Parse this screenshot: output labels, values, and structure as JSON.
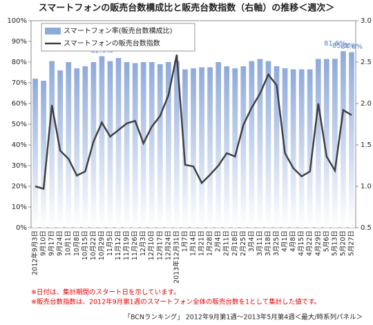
{
  "chart_data": {
    "type": "bar_line",
    "title": "スマートフォンの販売台数構成比と販売台数指数（右軸）の推移＜週次＞",
    "categories": [
      "2012年9月3日",
      "9月10日",
      "9月17日",
      "9月24日",
      "10月1日",
      "10月8日",
      "10月15日",
      "10月22日",
      "10月29日",
      "11月5日",
      "11月12日",
      "11月19日",
      "11月26日",
      "12月3日",
      "12月10日",
      "12月17日",
      "12月24日",
      "2013年12月31日",
      "1月7日",
      "1月14日",
      "1月21日",
      "1月28日",
      "2月4日",
      "2月11日",
      "2月18日",
      "2月25日",
      "3月4日",
      "3月11日",
      "3月18日",
      "3月25日",
      "4月1日",
      "4月8日",
      "4月15日",
      "4月22日",
      "4月29日",
      "5月6日",
      "5月13日",
      "5月20日",
      "5月27日"
    ],
    "series": [
      {
        "name": "スマートフォン率(販売台数構成比)",
        "type": "bar",
        "color": "#8eaadb",
        "values": [
          72,
          71,
          80.5,
          76,
          80,
          77,
          78,
          80,
          82.9,
          80.5,
          82,
          80,
          79.5,
          80,
          80,
          79,
          80,
          80.5,
          76.5,
          77,
          77.5,
          77.5,
          80,
          78,
          77,
          78,
          80.5,
          81.5,
          80.5,
          78,
          77,
          76.5,
          76.5,
          76.5,
          81.5,
          81.5,
          81.6,
          85.3,
          84.8
        ],
        "value_labels": [
          null,
          null,
          null,
          null,
          null,
          null,
          null,
          null,
          "82.9%",
          null,
          null,
          null,
          null,
          null,
          null,
          null,
          null,
          null,
          null,
          null,
          null,
          null,
          null,
          null,
          null,
          null,
          null,
          null,
          null,
          null,
          null,
          null,
          null,
          null,
          null,
          null,
          "81.6%",
          "85.3%",
          "84.8%"
        ]
      },
      {
        "name": "スマートフォンの販売台数指数",
        "type": "line",
        "axis": "y2",
        "color": "#404040",
        "values": [
          1.0,
          0.97,
          1.98,
          1.43,
          1.33,
          1.13,
          1.18,
          1.54,
          1.77,
          1.6,
          1.68,
          1.76,
          1.79,
          1.52,
          1.72,
          1.85,
          2.1,
          2.59,
          1.26,
          1.24,
          1.04,
          1.14,
          1.25,
          1.4,
          1.36,
          1.74,
          1.95,
          2.12,
          2.35,
          2.22,
          1.4,
          1.22,
          1.12,
          1.18,
          2.0,
          1.36,
          1.19,
          1.92,
          1.86
        ]
      }
    ],
    "ylim": [
      0,
      100
    ],
    "yticks": [
      {
        "value": 0,
        "label": "0%"
      },
      {
        "value": 10,
        "label": "10%"
      },
      {
        "value": 20,
        "label": "20%"
      },
      {
        "value": 30,
        "label": "30%"
      },
      {
        "value": 40,
        "label": "40%"
      },
      {
        "value": 50,
        "label": "50%"
      },
      {
        "value": 60,
        "label": "60%"
      },
      {
        "value": 70,
        "label": "70%"
      },
      {
        "value": 80,
        "label": "80%"
      },
      {
        "value": 90,
        "label": "90%"
      },
      {
        "value": 100,
        "label": "100%"
      }
    ],
    "y2lim": [
      0.5,
      3.0
    ],
    "y2ticks": [
      0.5,
      {
        "value": 1,
        "label": "1.0"
      },
      1.5,
      {
        "value": 2,
        "label": "2.0"
      },
      2.5,
      {
        "value": 3,
        "label": "3.0"
      }
    ],
    "legend": "upper left",
    "notes": [
      "※日付は、集計期間のスタート日を示しています。",
      "※販売台数指数は、2012年9月第1週のスマートフォン全体の販売台数を1として集計した値です。"
    ],
    "source": "「BCNランキング」 2012年9月第1週〜2013年5月第4週＜最大/時系列パネル＞"
  }
}
